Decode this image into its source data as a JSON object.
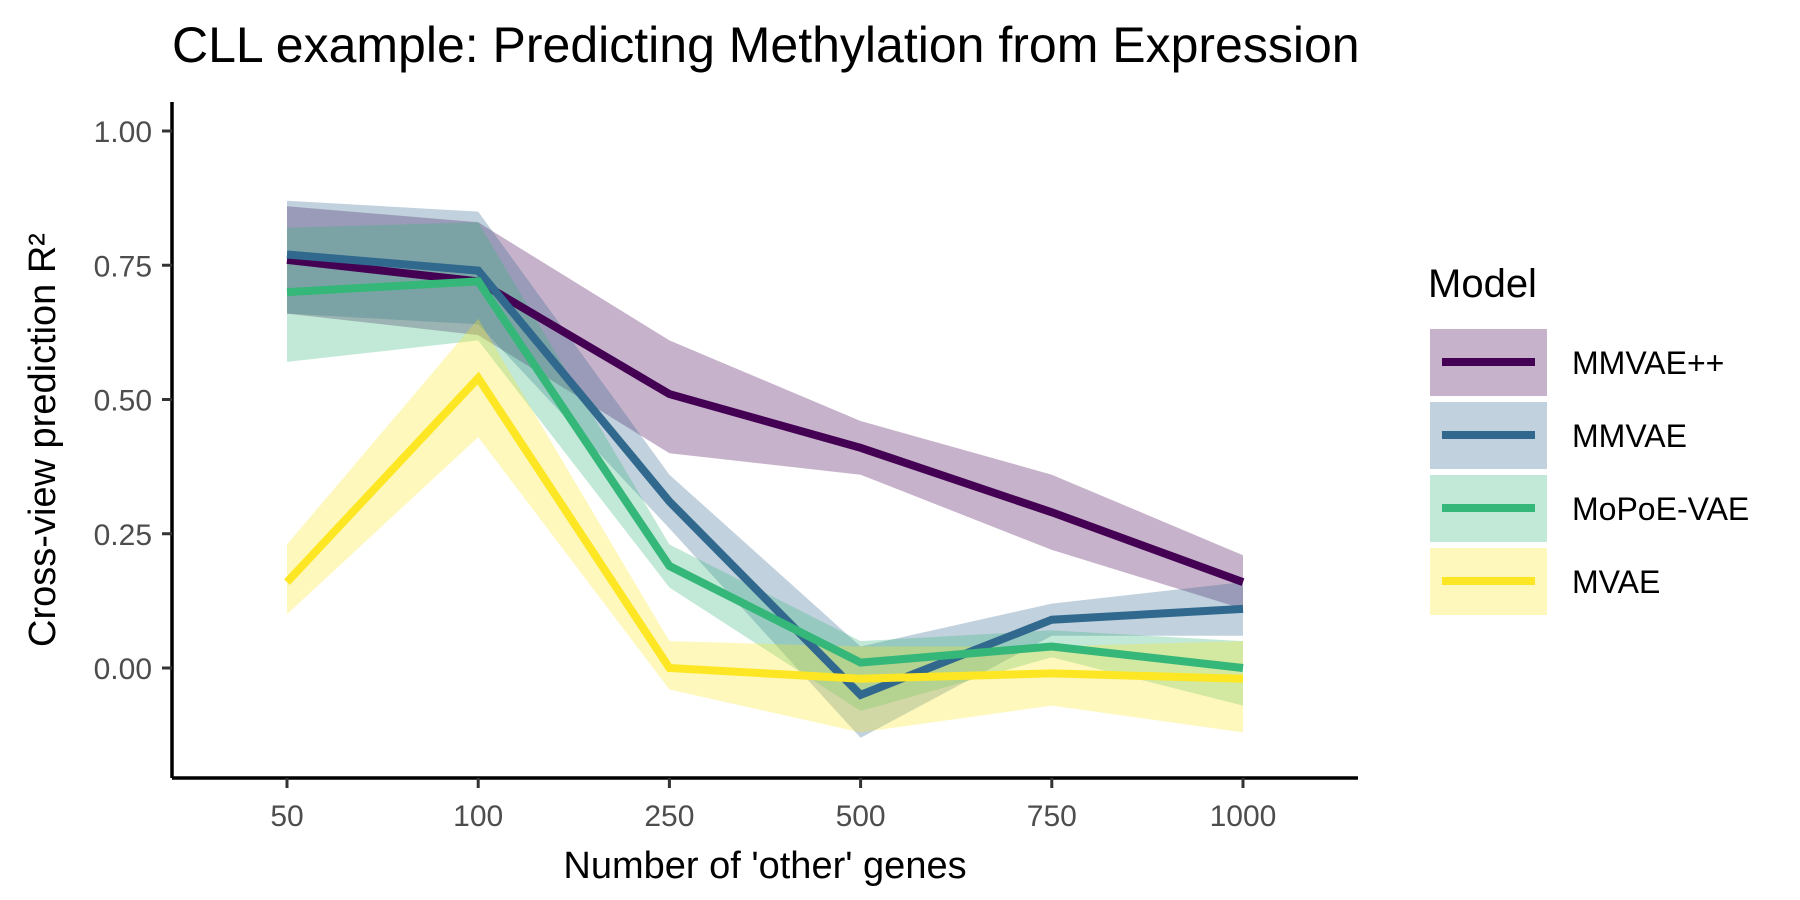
{
  "chart_data": {
    "type": "line",
    "title": "CLL example: Predicting Methylation from Expression",
    "xlabel": "Number of 'other' genes",
    "ylabel": "Cross-view prediction R²",
    "categories": [
      "50",
      "100",
      "250",
      "500",
      "750",
      "1000"
    ],
    "ylim": [
      -0.2,
      1.05
    ],
    "yticks": [
      0.0,
      0.25,
      0.5,
      0.75,
      1.0
    ],
    "ytick_labels": [
      "0.00",
      "0.25",
      "0.50",
      "0.75",
      "1.00"
    ],
    "grid": false,
    "legend": {
      "title": "Model",
      "position": "right"
    },
    "series": [
      {
        "name": "MMVAE++",
        "color": "#440154",
        "values": [
          0.76,
          0.72,
          0.51,
          0.41,
          0.29,
          0.16
        ],
        "lower": [
          0.66,
          0.62,
          0.4,
          0.36,
          0.22,
          0.11
        ],
        "upper": [
          0.86,
          0.83,
          0.61,
          0.46,
          0.36,
          0.21
        ]
      },
      {
        "name": "MMVAE",
        "color": "#31688E",
        "values": [
          0.77,
          0.74,
          0.31,
          -0.05,
          0.09,
          0.11
        ],
        "lower": [
          0.66,
          0.64,
          0.26,
          -0.13,
          0.06,
          0.06
        ],
        "upper": [
          0.87,
          0.85,
          0.36,
          0.04,
          0.12,
          0.16
        ]
      },
      {
        "name": "MoPoE-VAE",
        "color": "#35B779",
        "values": [
          0.7,
          0.72,
          0.19,
          0.01,
          0.04,
          0.0
        ],
        "lower": [
          0.57,
          0.61,
          0.15,
          -0.08,
          0.02,
          -0.07
        ],
        "upper": [
          0.82,
          0.83,
          0.23,
          0.05,
          0.07,
          0.05
        ]
      },
      {
        "name": "MVAE",
        "color": "#FDE725",
        "values": [
          0.16,
          0.54,
          0.0,
          -0.02,
          -0.01,
          -0.02
        ],
        "lower": [
          0.1,
          0.43,
          -0.04,
          -0.12,
          -0.07,
          -0.12
        ],
        "upper": [
          0.23,
          0.65,
          0.05,
          0.04,
          0.04,
          0.05
        ]
      }
    ]
  }
}
